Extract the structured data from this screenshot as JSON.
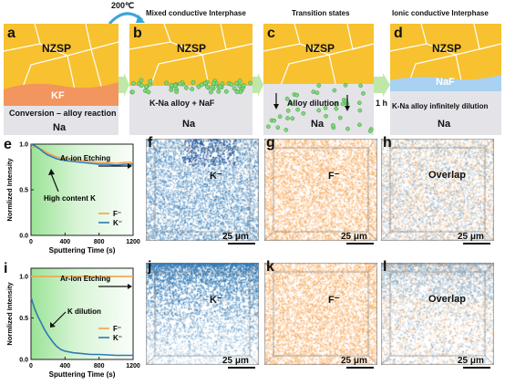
{
  "figure": {
    "top_label": "200℃",
    "time_label": "1 h",
    "panels": {
      "a": {
        "letter": "a",
        "nzsp": "NZSP",
        "layer": "KF",
        "reaction": "Conversion – alloy reaction",
        "metal": "Na"
      },
      "b": {
        "letter": "b",
        "title": "Mixed conductive Interphase",
        "nzsp": "NZSP",
        "reaction": "K-Na alloy + NaF",
        "metal": "Na"
      },
      "c": {
        "letter": "c",
        "title": "Transition states",
        "nzsp": "NZSP",
        "reaction": "Alloy dilution",
        "metal": "Na"
      },
      "d": {
        "letter": "d",
        "title": "Ionic conductive Interphase",
        "nzsp": "NZSP",
        "layer": "NaF",
        "reaction": "K-Na alloy infinitely dilution",
        "metal": "Na"
      }
    },
    "maps": {
      "f": {
        "letter": "f",
        "label": "K⁻",
        "scale": "25 μm"
      },
      "g": {
        "letter": "g",
        "label": "F⁻",
        "scale": "25 μm"
      },
      "h": {
        "letter": "h",
        "label": "Overlap",
        "scale": "25 μm"
      },
      "j": {
        "letter": "j",
        "label": "K⁻",
        "scale": "25 μm"
      },
      "k": {
        "letter": "k",
        "label": "F⁻",
        "scale": "25 μm"
      },
      "l": {
        "letter": "l",
        "label": "Overlap",
        "scale": "25 μm"
      }
    },
    "colors": {
      "nzsp": "#f7c130",
      "kf": "#f2955e",
      "naf": "#a8d1f2",
      "metal": "#e3e3e8",
      "k": "#2f78b4",
      "f": "#f6a14f",
      "green": "#8fe08a"
    }
  },
  "chart_data": [
    {
      "type": "line",
      "panel": "e",
      "xlabel": "Sputtering Time (s)",
      "ylabel": "Normlized Intensity",
      "xlim": [
        0,
        1200
      ],
      "ylim": [
        0,
        1.0
      ],
      "xticks": [
        0,
        400,
        800,
        1200
      ],
      "yticks": [
        0.0,
        0.5,
        1.0
      ],
      "annotations": [
        "Ar-ion Etching",
        "High content K"
      ],
      "legend": "bottom-right",
      "series": [
        {
          "name": "F⁻",
          "color": "#f6a14f",
          "x": [
            0,
            50,
            100,
            150,
            200,
            300,
            400,
            500,
            600,
            700,
            800,
            900,
            1000,
            1100,
            1200
          ],
          "y": [
            0.96,
            0.97,
            0.95,
            0.93,
            0.9,
            0.86,
            0.84,
            0.83,
            0.82,
            0.81,
            0.8,
            0.8,
            0.79,
            0.8,
            0.8
          ]
        },
        {
          "name": "K⁻",
          "color": "#2f78b4",
          "x": [
            0,
            50,
            100,
            150,
            200,
            300,
            400,
            500,
            600,
            700,
            800,
            900,
            1000,
            1100,
            1200
          ],
          "y": [
            1.0,
            0.98,
            0.95,
            0.91,
            0.88,
            0.84,
            0.82,
            0.81,
            0.8,
            0.79,
            0.78,
            0.78,
            0.77,
            0.78,
            0.78
          ]
        }
      ]
    },
    {
      "type": "line",
      "panel": "i",
      "xlabel": "Sputtering Time (s)",
      "ylabel": "Normlized Intensity",
      "xlim": [
        0,
        1200
      ],
      "ylim": [
        0,
        1.1
      ],
      "xticks": [
        0,
        400,
        800,
        1200
      ],
      "yticks": [
        0.0,
        0.5,
        1.0
      ],
      "annotations": [
        "Ar-ion Etching",
        "K dilution"
      ],
      "legend": "right",
      "series": [
        {
          "name": "F⁻",
          "color": "#f6a14f",
          "x": [
            0,
            100,
            200,
            300,
            400,
            500,
            600,
            700,
            800,
            900,
            1000,
            1100,
            1200
          ],
          "y": [
            1.0,
            1.0,
            1.0,
            1.0,
            1.0,
            1.0,
            1.0,
            1.0,
            1.0,
            1.0,
            1.0,
            1.0,
            1.0
          ]
        },
        {
          "name": "K⁻",
          "color": "#2f78b4",
          "x": [
            0,
            40,
            80,
            120,
            160,
            200,
            250,
            300,
            350,
            400,
            500,
            600,
            700,
            800,
            1000,
            1200
          ],
          "y": [
            0.75,
            0.62,
            0.52,
            0.44,
            0.36,
            0.29,
            0.22,
            0.16,
            0.12,
            0.1,
            0.08,
            0.07,
            0.06,
            0.06,
            0.05,
            0.05
          ]
        }
      ]
    }
  ]
}
